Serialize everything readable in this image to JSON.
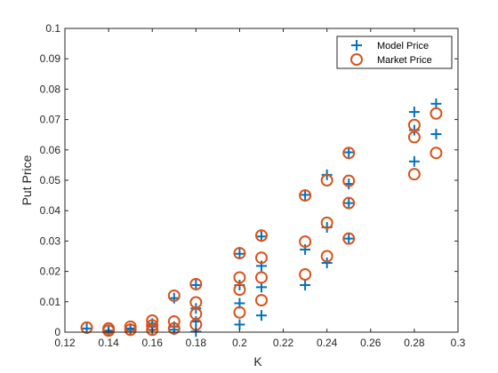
{
  "chart_data": {
    "type": "scatter",
    "xlabel": "K",
    "ylabel": "Put Price",
    "xlim": [
      0.12,
      0.3
    ],
    "ylim": [
      0,
      0.1
    ],
    "xticks": [
      "0.12",
      "0.14",
      "0.16",
      "0.18",
      "0.2",
      "0.22",
      "0.24",
      "0.26",
      "0.28",
      "0.3"
    ],
    "yticks": [
      "0",
      "0.01",
      "0.02",
      "0.03",
      "0.04",
      "0.05",
      "0.06",
      "0.07",
      "0.08",
      "0.09",
      "0.1"
    ],
    "grid": false,
    "legend_position": "top-right",
    "series": [
      {
        "name": "Model Price",
        "marker": "plus",
        "color": "#0072BD",
        "points": [
          [
            0.13,
            0.0012
          ],
          [
            0.14,
            0.0005
          ],
          [
            0.14,
            0.0003
          ],
          [
            0.15,
            0.0012
          ],
          [
            0.15,
            0.0009
          ],
          [
            0.16,
            0.0028
          ],
          [
            0.16,
            0.0018
          ],
          [
            0.16,
            0.0008
          ],
          [
            0.17,
            0.0112
          ],
          [
            0.17,
            0.0018
          ],
          [
            0.17,
            0.0008
          ],
          [
            0.18,
            0.0155
          ],
          [
            0.18,
            0.0078
          ],
          [
            0.18,
            0.0035
          ],
          [
            0.18,
            0.0002
          ],
          [
            0.2,
            0.0258
          ],
          [
            0.2,
            0.0155
          ],
          [
            0.2,
            0.0095
          ],
          [
            0.2,
            0.0025
          ],
          [
            0.21,
            0.0315
          ],
          [
            0.21,
            0.0218
          ],
          [
            0.21,
            0.0148
          ],
          [
            0.21,
            0.0055
          ],
          [
            0.23,
            0.0452
          ],
          [
            0.23,
            0.0272
          ],
          [
            0.23,
            0.0155
          ],
          [
            0.24,
            0.0518
          ],
          [
            0.24,
            0.0345
          ],
          [
            0.24,
            0.0228
          ],
          [
            0.25,
            0.0592
          ],
          [
            0.25,
            0.0488
          ],
          [
            0.25,
            0.0425
          ],
          [
            0.25,
            0.0308
          ],
          [
            0.28,
            0.0725
          ],
          [
            0.28,
            0.0665
          ],
          [
            0.28,
            0.0562
          ],
          [
            0.29,
            0.0752
          ],
          [
            0.29,
            0.0652
          ]
        ]
      },
      {
        "name": "Market Price",
        "marker": "circle",
        "color": "#D95319",
        "points": [
          [
            0.13,
            0.0015
          ],
          [
            0.14,
            0.0012
          ],
          [
            0.14,
            0.0005
          ],
          [
            0.15,
            0.0018
          ],
          [
            0.15,
            0.0008
          ],
          [
            0.16,
            0.0038
          ],
          [
            0.16,
            0.0022
          ],
          [
            0.16,
            0.0008
          ],
          [
            0.17,
            0.012
          ],
          [
            0.17,
            0.0035
          ],
          [
            0.17,
            0.0012
          ],
          [
            0.18,
            0.0158
          ],
          [
            0.18,
            0.0098
          ],
          [
            0.18,
            0.006
          ],
          [
            0.18,
            0.0025
          ],
          [
            0.2,
            0.026
          ],
          [
            0.2,
            0.018
          ],
          [
            0.2,
            0.014
          ],
          [
            0.2,
            0.0065
          ],
          [
            0.21,
            0.0318
          ],
          [
            0.21,
            0.0245
          ],
          [
            0.21,
            0.018
          ],
          [
            0.21,
            0.0105
          ],
          [
            0.23,
            0.045
          ],
          [
            0.23,
            0.0298
          ],
          [
            0.23,
            0.019
          ],
          [
            0.24,
            0.05
          ],
          [
            0.24,
            0.036
          ],
          [
            0.24,
            0.025
          ],
          [
            0.25,
            0.059
          ],
          [
            0.25,
            0.0498
          ],
          [
            0.25,
            0.0425
          ],
          [
            0.25,
            0.0308
          ],
          [
            0.28,
            0.0682
          ],
          [
            0.28,
            0.0642
          ],
          [
            0.28,
            0.052
          ],
          [
            0.29,
            0.072
          ],
          [
            0.29,
            0.059
          ]
        ]
      }
    ]
  }
}
